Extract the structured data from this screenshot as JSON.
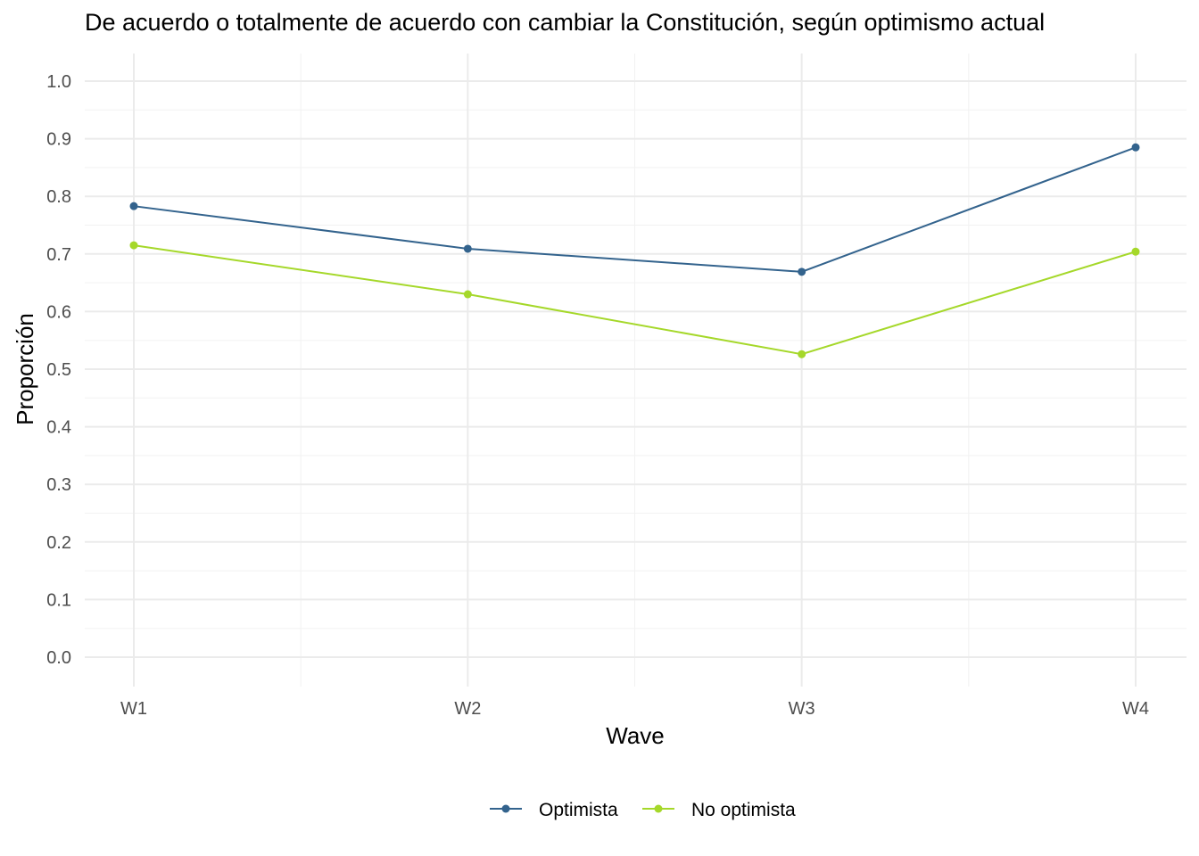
{
  "chart_data": {
    "type": "line",
    "title": "De acuerdo o totalmente de acuerdo con cambiar la Constitución, según optimismo actual",
    "xlabel": "Wave",
    "ylabel": "Proporción",
    "categories": [
      "W1",
      "W2",
      "W3",
      "W4"
    ],
    "ylim": [
      0,
      1
    ],
    "y_ticks": [
      "0.0",
      "0.1",
      "0.2",
      "0.3",
      "0.4",
      "0.5",
      "0.6",
      "0.7",
      "0.8",
      "0.9",
      "1.0"
    ],
    "grid": true,
    "legend_position": "bottom",
    "series": [
      {
        "name": "Optimista",
        "color": "#33638d",
        "values": [
          0.783,
          0.709,
          0.669,
          0.885
        ]
      },
      {
        "name": "No optimista",
        "color": "#a5d82a",
        "values": [
          0.715,
          0.63,
          0.526,
          0.704
        ]
      }
    ]
  }
}
